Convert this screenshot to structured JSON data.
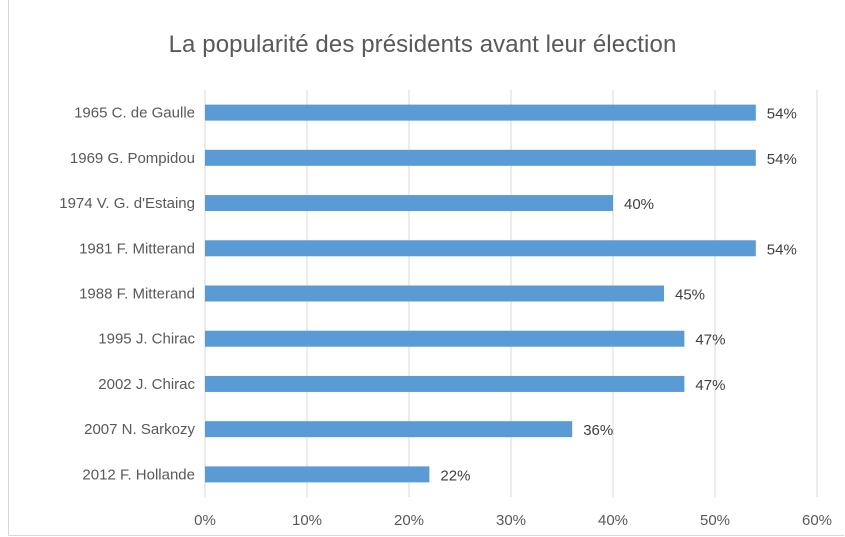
{
  "chart_data": {
    "type": "bar",
    "orientation": "horizontal",
    "title": "La popularité des présidents avant leur élection",
    "categories": [
      "1965 C. de Gaulle",
      "1969 G. Pompidou",
      "1974 V. G. d'Estaing",
      "1981 F. Mitterand",
      "1988 F. Mitterand",
      "1995 J. Chirac",
      "2002 J. Chirac",
      "2007 N. Sarkozy",
      "2012 F. Hollande"
    ],
    "values": [
      54,
      54,
      40,
      54,
      45,
      47,
      47,
      36,
      22
    ],
    "data_labels": [
      "54%",
      "54%",
      "40%",
      "54%",
      "45%",
      "47%",
      "47%",
      "36%",
      "22%"
    ],
    "xlim": [
      0,
      60
    ],
    "x_ticks": [
      "0%",
      "10%",
      "20%",
      "30%",
      "40%",
      "50%",
      "60%"
    ],
    "xlabel": "",
    "ylabel": "",
    "grid": "vertical",
    "legend": "none",
    "bar_color": "#5b9bd5"
  },
  "clipped_header_text": ""
}
